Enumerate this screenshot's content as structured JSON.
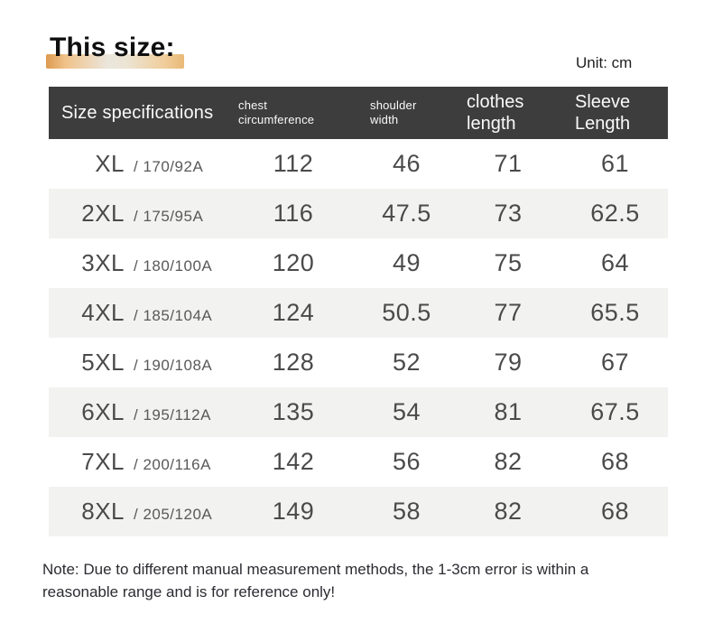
{
  "page": {
    "title": "This size:",
    "unit_label": "Unit: cm",
    "note": "Note: Due to different manual measurement methods, the 1-3cm error is within a reasonable range and is for reference only!"
  },
  "table": {
    "headers": {
      "size": "Size specifications",
      "chest": "chest circumference",
      "shoulder": "shoulder width",
      "clothes": "clothes length",
      "sleeve": "Sleeve Length"
    },
    "rows": [
      {
        "size": "XL",
        "spec": "/ 170/92A",
        "chest": "112",
        "shoulder": "46",
        "clothes": "71",
        "sleeve": "61"
      },
      {
        "size": "2XL",
        "spec": "/ 175/95A",
        "chest": "116",
        "shoulder": "47.5",
        "clothes": "73",
        "sleeve": "62.5"
      },
      {
        "size": "3XL",
        "spec": "/ 180/100A",
        "chest": "120",
        "shoulder": "49",
        "clothes": "75",
        "sleeve": "64"
      },
      {
        "size": "4XL",
        "spec": "/ 185/104A",
        "chest": "124",
        "shoulder": "50.5",
        "clothes": "77",
        "sleeve": "65.5"
      },
      {
        "size": "5XL",
        "spec": "/ 190/108A",
        "chest": "128",
        "shoulder": "52",
        "clothes": "79",
        "sleeve": "67"
      },
      {
        "size": "6XL",
        "spec": "/ 195/112A",
        "chest": "135",
        "shoulder": "54",
        "clothes": "81",
        "sleeve": "67.5"
      },
      {
        "size": "7XL",
        "spec": "/ 200/116A",
        "chest": "142",
        "shoulder": "56",
        "clothes": "82",
        "sleeve": "68"
      },
      {
        "size": "8XL",
        "spec": "/ 205/120A",
        "chest": "149",
        "shoulder": "58",
        "clothes": "82",
        "sleeve": "68"
      }
    ]
  },
  "colors": {
    "header_bg": "#3d3d3d",
    "header_text": "#fafafa",
    "row_text": "#4a4a4a",
    "alt_row_bg": "#f2f2f0",
    "highlight_left": "#dd9950",
    "highlight_mid": "#ebe6dd",
    "highlight_right": "#e9b977"
  }
}
